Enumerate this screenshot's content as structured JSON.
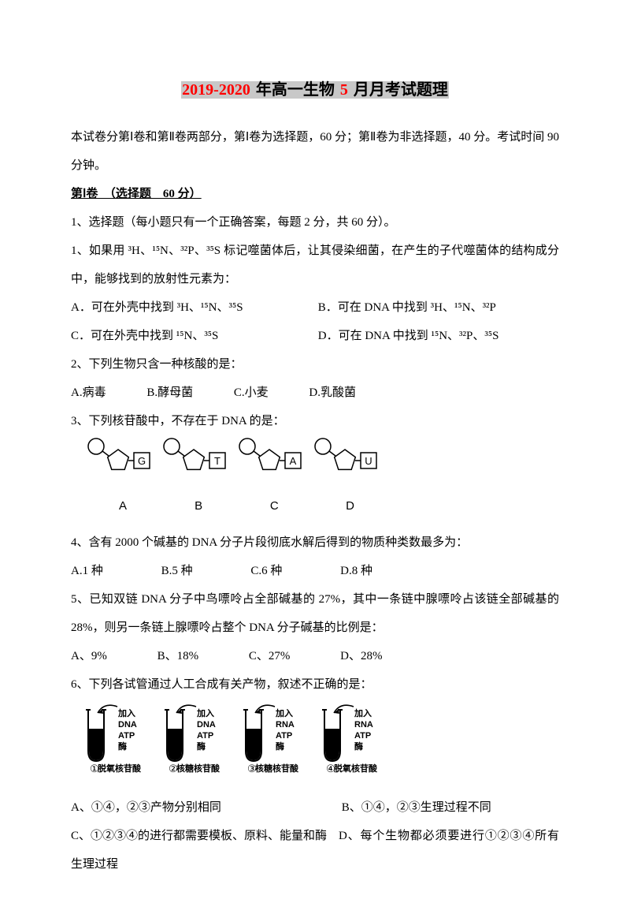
{
  "title": {
    "part1": "2019-2020",
    "part2": " 年高一生物 ",
    "part3": "5",
    "part4": " 月月考试题理"
  },
  "intro": "本试卷分第Ⅰ卷和第Ⅱ卷两部分，第Ⅰ卷为选择题，60 分；第Ⅱ卷为非选择题，40 分。考试时间 90 分钟。",
  "section1_header": "第Ⅰ卷　（选择题　60 分）",
  "instructions": "1、选择题（每小题只有一个正确答案，每题 2 分，共 60 分）。",
  "q1": {
    "stem": "1、如果用 ³H、¹⁵N、³²P、³⁵S 标记噬菌体后，让其侵染细菌，在产生的子代噬菌体的结构成分中，能够找到的放射性元素为：",
    "A": "A．可在外壳中找到 ³H、¹⁵N、³⁵S",
    "B": "B．可在 DNA 中找到 ³H、¹⁵N、³²P",
    "C": "C．可在外壳中找到 ¹⁵N、³⁵S",
    "D": "D．可在 DNA 中找到 ¹⁵N、³²P、³⁵S"
  },
  "q2": {
    "stem": "2、下列生物只含一种核酸的是：",
    "A": "A.病毒",
    "B": "B.酵母菌",
    "C": "C.小麦",
    "D": "D.乳酸菌"
  },
  "q3": {
    "stem": "3、下列核苷酸中，不存在于 DNA 的是：",
    "figure": {
      "items": [
        {
          "label": "A",
          "base": "G",
          "sugar": "pentagon",
          "phosphate": "circle"
        },
        {
          "label": "B",
          "base": "T",
          "sugar": "pentagon",
          "phosphate": "circle"
        },
        {
          "label": "C",
          "base": "A",
          "sugar": "pentagon",
          "phosphate": "circle"
        },
        {
          "label": "D",
          "base": "U",
          "sugar": "pentagon",
          "phosphate": "circle"
        }
      ],
      "stroke": "#000000",
      "fill": "#ffffff",
      "item_width": 96
    }
  },
  "q4": {
    "stem": "4、含有 2000 个碱基的 DNA 分子片段彻底水解后得到的物质种类数最多为：",
    "A": "A.1 种",
    "B": "B.5 种",
    "C": "C.6 种",
    "D": "D.8 种"
  },
  "q5": {
    "stem": "5、已知双链 DNA 分子中鸟嘌呤占全部碱基的 27%，其中一条链中腺嘌呤占该链全部碱基的28%，则另一条链上腺嘌呤占整个 DNA 分子碱基的比例是：",
    "A": "A、9%",
    "B": "B、18%",
    "C": "C、27%",
    "D": "D、28%"
  },
  "q6": {
    "stem": "6、下列各试管通过人工合成有关产物，叙述不正确的是：",
    "figure": {
      "tubes": [
        {
          "num": "①",
          "lines": [
            "加入",
            "DNA",
            "ATP",
            "酶",
            "脱氧核苷酸"
          ]
        },
        {
          "num": "②",
          "lines": [
            "加入",
            "DNA",
            "ATP",
            "酶",
            "核糖核苷酸"
          ]
        },
        {
          "num": "③",
          "lines": [
            "加入",
            "RNA",
            "ATP",
            "酶",
            "核糖核苷酸"
          ]
        },
        {
          "num": "④",
          "lines": [
            "加入",
            "RNA",
            "ATP",
            "酶",
            "脱氧核苷酸"
          ]
        }
      ],
      "tube_stroke": "#000000",
      "tube_fill": "#000000",
      "tube_width": 100
    },
    "A": "A、①④，②③产物分别相同",
    "B": "B、①④，②③生理过程不同",
    "C": "C、①②③④的进行都需要模板、原料、能量和酶",
    "D": "D、每个生物都必须要进行①②③④所有生理过程"
  }
}
